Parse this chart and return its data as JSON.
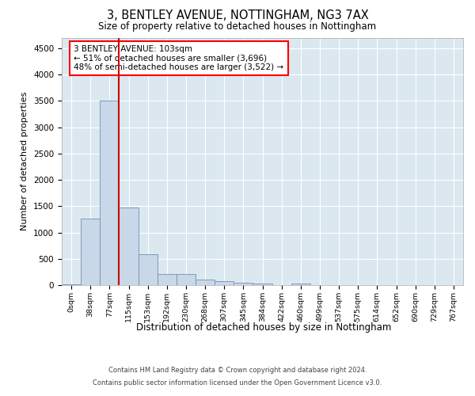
{
  "title1": "3, BENTLEY AVENUE, NOTTINGHAM, NG3 7AX",
  "title2": "Size of property relative to detached houses in Nottingham",
  "xlabel": "Distribution of detached houses by size in Nottingham",
  "ylabel": "Number of detached properties",
  "bin_labels": [
    "0sqm",
    "38sqm",
    "77sqm",
    "115sqm",
    "153sqm",
    "192sqm",
    "230sqm",
    "268sqm",
    "307sqm",
    "345sqm",
    "384sqm",
    "422sqm",
    "460sqm",
    "499sqm",
    "537sqm",
    "575sqm",
    "614sqm",
    "652sqm",
    "690sqm",
    "729sqm",
    "767sqm"
  ],
  "bar_values": [
    10,
    1260,
    3500,
    1470,
    580,
    210,
    210,
    105,
    70,
    50,
    35,
    0,
    30,
    0,
    0,
    0,
    0,
    0,
    0,
    0,
    0
  ],
  "bar_color": "#c8d8e8",
  "bar_edge_color": "#7090b0",
  "vline_x_index": 2,
  "vline_color": "#cc0000",
  "annotation_text": "3 BENTLEY AVENUE: 103sqm\n← 51% of detached houses are smaller (3,696)\n48% of semi-detached houses are larger (3,522) →",
  "ylim": [
    0,
    4700
  ],
  "yticks": [
    0,
    500,
    1000,
    1500,
    2000,
    2500,
    3000,
    3500,
    4000,
    4500
  ],
  "plot_bg_color": "#dce8f0",
  "footer1": "Contains HM Land Registry data © Crown copyright and database right 2024.",
  "footer2": "Contains public sector information licensed under the Open Government Licence v3.0."
}
